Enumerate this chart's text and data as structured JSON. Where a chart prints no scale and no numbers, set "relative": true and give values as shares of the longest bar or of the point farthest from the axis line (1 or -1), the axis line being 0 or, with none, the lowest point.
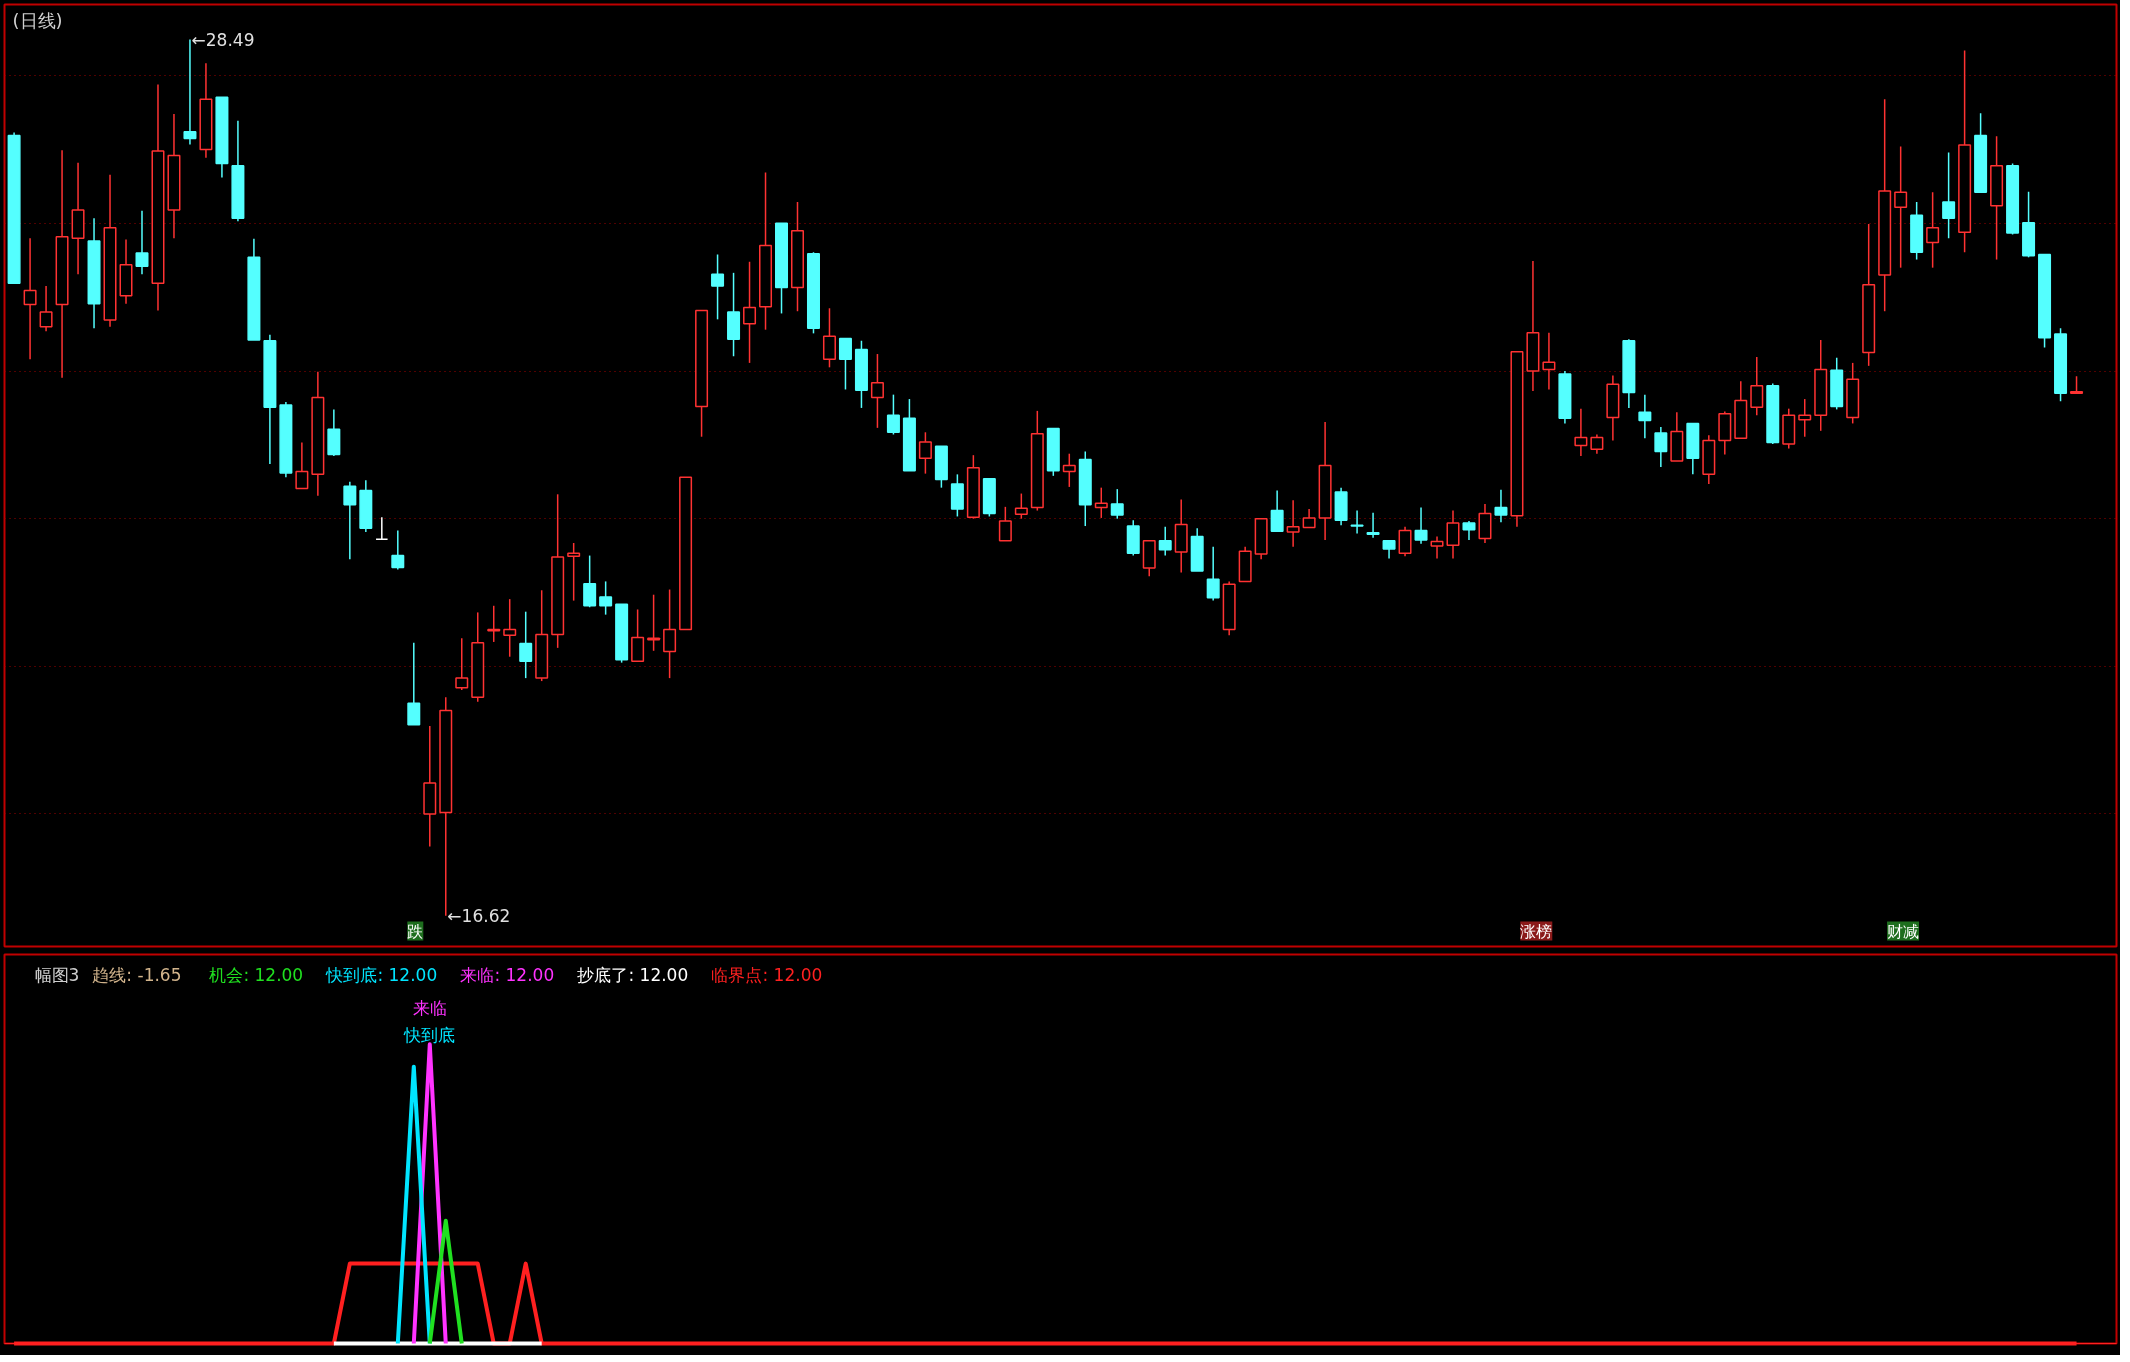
{
  "chart_data": [
    {
      "type": "candlestick",
      "title": "(日线)",
      "categories": [
        null,
        null,
        null,
        null,
        null,
        null,
        null,
        null,
        null,
        null,
        null,
        null,
        null,
        null,
        null,
        null,
        null,
        null,
        null,
        null,
        null,
        null,
        null,
        null,
        null,
        null,
        null,
        null,
        null,
        null,
        null,
        null,
        null,
        null,
        null,
        null,
        null,
        null,
        null,
        null,
        null,
        null,
        null,
        null,
        null,
        null,
        null,
        null,
        null,
        null,
        null,
        null,
        null,
        null,
        null,
        null,
        null,
        null,
        null,
        null,
        null,
        null,
        null,
        null,
        null,
        null,
        null,
        null,
        null,
        null,
        null,
        null,
        null,
        null,
        null,
        null,
        null,
        null,
        null,
        null,
        null,
        null,
        null,
        null,
        null,
        null,
        null,
        null,
        null,
        null,
        null,
        null,
        null,
        null,
        null,
        null,
        null,
        null,
        null,
        null,
        null,
        null,
        null,
        null,
        null,
        null,
        null,
        null,
        null,
        null,
        null,
        null,
        null,
        null,
        null,
        null,
        null,
        null,
        null,
        null,
        null,
        null,
        null,
        null,
        null,
        null,
        null,
        null,
        null,
        null
      ],
      "ohlc": [
        [
          27.19,
          27.23,
          25.19,
          25.19
        ],
        [
          24.9,
          25.8,
          24.16,
          25.09
        ],
        [
          24.6,
          25.15,
          24.54,
          24.8
        ],
        [
          24.9,
          26.99,
          23.91,
          25.82
        ],
        [
          25.8,
          26.82,
          25.31,
          26.18
        ],
        [
          25.76,
          26.07,
          24.58,
          24.91
        ],
        [
          24.69,
          26.66,
          24.6,
          25.94
        ],
        [
          25.02,
          25.78,
          24.91,
          25.44
        ],
        [
          25.6,
          26.17,
          25.31,
          25.42
        ],
        [
          25.19,
          27.88,
          24.82,
          26.98
        ],
        [
          26.18,
          27.48,
          25.8,
          26.92
        ],
        [
          27.24,
          28.49,
          27.07,
          27.15
        ],
        [
          27.0,
          28.17,
          26.89,
          27.68
        ],
        [
          27.71,
          27.71,
          26.62,
          26.81
        ],
        [
          26.78,
          27.39,
          26.03,
          26.07
        ],
        [
          25.54,
          25.79,
          24.42,
          24.42
        ],
        [
          24.41,
          24.49,
          22.74,
          23.51
        ],
        [
          23.54,
          23.58,
          22.56,
          22.62
        ],
        [
          22.41,
          23.03,
          22.41,
          22.64
        ],
        [
          22.6,
          23.99,
          22.31,
          23.64
        ],
        [
          23.21,
          23.48,
          22.85,
          22.87
        ],
        [
          22.44,
          22.5,
          21.45,
          22.19
        ],
        [
          22.38,
          22.52,
          21.82,
          21.87
        ],
        [
          21.72,
          22.02,
          21.71,
          21.72
        ],
        [
          21.5,
          21.84,
          21.31,
          21.34
        ],
        [
          19.5,
          20.32,
          19.21,
          19.21
        ],
        [
          18.0,
          19.19,
          17.56,
          18.42
        ],
        [
          18.02,
          19.58,
          16.62,
          19.4
        ],
        [
          19.71,
          20.38,
          19.68,
          19.84
        ],
        [
          19.58,
          20.73,
          19.52,
          20.32
        ],
        [
          20.48,
          20.82,
          20.33,
          20.5
        ],
        [
          20.42,
          20.91,
          20.13,
          20.5
        ],
        [
          20.31,
          20.74,
          19.84,
          20.07
        ],
        [
          19.84,
          21.03,
          19.8,
          20.43
        ],
        [
          20.43,
          22.33,
          20.25,
          21.48
        ],
        [
          21.49,
          21.67,
          20.89,
          21.53
        ],
        [
          21.12,
          21.5,
          20.8,
          20.82
        ],
        [
          20.94,
          21.15,
          20.7,
          20.82
        ],
        [
          20.84,
          20.84,
          20.05,
          20.09
        ],
        [
          20.07,
          20.77,
          20.07,
          20.39
        ],
        [
          20.36,
          20.97,
          20.21,
          20.38
        ],
        [
          20.2,
          21.04,
          19.84,
          20.5
        ],
        [
          20.5,
          22.56,
          20.5,
          22.56
        ],
        [
          23.52,
          24.82,
          23.11,
          24.82
        ],
        [
          25.31,
          25.58,
          24.7,
          25.15
        ],
        [
          24.8,
          25.33,
          24.2,
          24.43
        ],
        [
          24.64,
          25.48,
          24.11,
          24.86
        ],
        [
          24.87,
          26.69,
          24.56,
          25.7
        ],
        [
          26.0,
          26.0,
          24.78,
          25.13
        ],
        [
          25.13,
          26.29,
          24.81,
          25.9
        ],
        [
          25.59,
          25.61,
          24.51,
          24.58
        ],
        [
          24.16,
          24.85,
          24.05,
          24.47
        ],
        [
          24.44,
          24.44,
          23.75,
          24.16
        ],
        [
          24.29,
          24.41,
          23.5,
          23.74
        ],
        [
          23.64,
          24.23,
          23.23,
          23.84
        ],
        [
          23.4,
          23.68,
          23.14,
          23.17
        ],
        [
          23.36,
          23.62,
          22.65,
          22.65
        ],
        [
          22.82,
          23.17,
          22.61,
          23.04
        ],
        [
          22.98,
          22.98,
          22.42,
          22.53
        ],
        [
          22.47,
          22.6,
          22.03,
          22.13
        ],
        [
          22.02,
          22.86,
          22.0,
          22.69
        ],
        [
          22.54,
          22.54,
          22.03,
          22.07
        ],
        [
          21.7,
          22.16,
          21.7,
          21.97
        ],
        [
          22.06,
          22.34,
          22.0,
          22.14
        ],
        [
          22.15,
          23.46,
          22.11,
          23.15
        ],
        [
          23.22,
          23.22,
          22.58,
          22.65
        ],
        [
          22.64,
          22.88,
          22.43,
          22.72
        ],
        [
          22.8,
          22.91,
          21.9,
          22.19
        ],
        [
          22.15,
          22.42,
          22.01,
          22.21
        ],
        [
          22.2,
          22.4,
          22.0,
          22.05
        ],
        [
          21.9,
          21.98,
          21.5,
          21.53
        ],
        [
          21.33,
          21.7,
          21.22,
          21.7
        ],
        [
          21.7,
          21.89,
          21.5,
          21.58
        ],
        [
          21.55,
          22.26,
          21.27,
          21.92
        ],
        [
          21.76,
          21.87,
          21.29,
          21.29
        ],
        [
          21.18,
          21.62,
          20.89,
          20.93
        ],
        [
          20.5,
          21.15,
          20.42,
          21.11
        ],
        [
          21.15,
          21.62,
          21.15,
          21.56
        ],
        [
          21.52,
          22.0,
          21.45,
          22.0
        ],
        [
          22.11,
          22.38,
          21.83,
          21.83
        ],
        [
          21.82,
          22.25,
          21.62,
          21.89
        ],
        [
          21.88,
          22.13,
          21.88,
          22.01
        ],
        [
          22.01,
          23.31,
          21.71,
          22.72
        ],
        [
          22.36,
          22.42,
          21.91,
          21.98
        ],
        [
          21.91,
          22.11,
          21.8,
          21.9
        ],
        [
          21.81,
          22.08,
          21.74,
          21.79
        ],
        [
          21.7,
          21.7,
          21.46,
          21.59
        ],
        [
          21.53,
          21.89,
          21.49,
          21.84
        ],
        [
          21.84,
          22.15,
          21.66,
          21.71
        ],
        [
          21.63,
          21.76,
          21.46,
          21.69
        ],
        [
          21.64,
          22.11,
          21.46,
          21.94
        ],
        [
          21.94,
          21.97,
          21.71,
          21.85
        ],
        [
          21.73,
          22.2,
          21.67,
          22.07
        ],
        [
          22.15,
          22.39,
          21.95,
          22.05
        ],
        [
          22.04,
          24.26,
          21.89,
          24.26
        ],
        [
          24.0,
          25.49,
          23.73,
          24.52
        ],
        [
          24.02,
          24.52,
          23.75,
          24.12
        ],
        [
          23.96,
          24.0,
          23.29,
          23.36
        ],
        [
          22.99,
          23.49,
          22.85,
          23.1
        ],
        [
          22.94,
          23.14,
          22.88,
          23.1
        ],
        [
          23.37,
          23.94,
          23.06,
          23.82
        ],
        [
          24.41,
          24.43,
          23.5,
          23.71
        ],
        [
          23.44,
          23.68,
          23.09,
          23.33
        ],
        [
          23.16,
          23.24,
          22.7,
          22.91
        ],
        [
          22.78,
          23.44,
          22.78,
          23.18
        ],
        [
          23.29,
          23.29,
          22.6,
          22.82
        ],
        [
          22.6,
          23.13,
          22.47,
          23.06
        ],
        [
          23.06,
          23.45,
          22.87,
          23.42
        ],
        [
          23.09,
          23.86,
          23.09,
          23.6
        ],
        [
          23.51,
          24.19,
          23.4,
          23.8
        ],
        [
          23.8,
          23.83,
          23.01,
          23.03
        ],
        [
          23.01,
          23.49,
          22.95,
          23.4
        ],
        [
          23.34,
          23.62,
          23.11,
          23.4
        ],
        [
          23.4,
          24.42,
          23.19,
          24.02
        ],
        [
          24.01,
          24.18,
          23.48,
          23.52
        ],
        [
          23.37,
          24.11,
          23.29,
          23.89
        ],
        [
          24.25,
          25.99,
          24.07,
          25.17
        ],
        [
          25.3,
          27.68,
          24.81,
          26.44
        ],
        [
          26.22,
          27.04,
          25.4,
          26.42
        ],
        [
          26.11,
          26.29,
          25.51,
          25.61
        ],
        [
          25.74,
          26.42,
          25.4,
          25.94
        ],
        [
          26.29,
          26.96,
          25.8,
          26.07
        ],
        [
          25.88,
          28.34,
          25.61,
          27.06
        ],
        [
          27.19,
          27.49,
          26.42,
          26.42
        ],
        [
          26.24,
          27.18,
          25.51,
          26.78
        ],
        [
          26.78,
          26.81,
          25.85,
          25.87
        ],
        [
          26.01,
          26.43,
          25.54,
          25.56
        ],
        [
          25.58,
          25.58,
          24.32,
          24.45
        ],
        [
          24.5,
          24.58,
          23.59,
          23.7
        ],
        [
          23.7,
          23.93,
          23.7,
          23.72
        ]
      ],
      "colors": [
        "#54ffff",
        "#ff3232",
        "#ff3232",
        "#ff3232",
        "#ff3232",
        "#54ffff",
        "#ff3232",
        "#ff3232",
        "#54ffff",
        "#ff3232",
        "#ff3232",
        "#54ffff",
        "#ff3232",
        "#54ffff",
        "#54ffff",
        "#54ffff",
        "#54ffff",
        "#54ffff",
        "#ff3232",
        "#ff3232",
        "#54ffff",
        "#54ffff",
        "#54ffff",
        "#ffffff",
        "#54ffff",
        "#54ffff",
        "#ff3232",
        "#ff3232",
        "#ff3232",
        "#ff3232",
        "#ff3232",
        "#ff3232",
        "#54ffff",
        "#ff3232",
        "#ff3232",
        "#ff3232",
        "#54ffff",
        "#54ffff",
        "#54ffff",
        "#ff3232",
        "#ff3232",
        "#ff3232",
        "#ff3232",
        "#ff3232",
        "#54ffff",
        "#54ffff",
        "#ff3232",
        "#ff3232",
        "#54ffff",
        "#ff3232",
        "#54ffff",
        "#ff3232",
        "#54ffff",
        "#54ffff",
        "#ff3232",
        "#54ffff",
        "#54ffff",
        "#ff3232",
        "#54ffff",
        "#54ffff",
        "#ff3232",
        "#54ffff",
        "#ff3232",
        "#ff3232",
        "#ff3232",
        "#54ffff",
        "#ff3232",
        "#54ffff",
        "#ff3232",
        "#54ffff",
        "#54ffff",
        "#ff3232",
        "#54ffff",
        "#ff3232",
        "#54ffff",
        "#54ffff",
        "#ff3232",
        "#ff3232",
        "#ff3232",
        "#54ffff",
        "#ff3232",
        "#ff3232",
        "#ff3232",
        "#54ffff",
        "#54ffff",
        "#54ffff",
        "#54ffff",
        "#ff3232",
        "#54ffff",
        "#ff3232",
        "#ff3232",
        "#54ffff",
        "#ff3232",
        "#54ffff",
        "#ff3232",
        "#ff3232",
        "#ff3232",
        "#54ffff",
        "#ff3232",
        "#ff3232",
        "#ff3232",
        "#54ffff",
        "#54ffff",
        "#54ffff",
        "#ff3232",
        "#54ffff",
        "#ff3232",
        "#ff3232",
        "#ff3232",
        "#ff3232",
        "#54ffff",
        "#ff3232",
        "#ff3232",
        "#ff3232",
        "#54ffff",
        "#ff3232",
        "#ff3232",
        "#ff3232",
        "#ff3232",
        "#54ffff",
        "#ff3232",
        "#54ffff",
        "#ff3232",
        "#54ffff",
        "#ff3232",
        "#54ffff",
        "#54ffff",
        "#54ffff",
        "#54ffff",
        "#ff3232"
      ],
      "yticks": [
        {
          "value": 18,
          "label": null
        },
        {
          "value": 20,
          "label": null
        },
        {
          "value": 22,
          "label": null
        },
        {
          "value": 24,
          "label": null
        },
        {
          "value": 26,
          "label": null
        },
        {
          "value": 28,
          "label": null
        }
      ],
      "grid": "y",
      "tick_labels": false,
      "annotations": [
        "←28.49",
        "←16.62",
        "跌",
        "涨榜",
        "财减"
      ]
    },
    {
      "type": "line",
      "title": "幅图3",
      "relative": true,
      "tick_labels": "x",
      "legend": "top left",
      "categories": [
        null,
        null,
        null,
        null,
        null,
        null,
        null,
        null,
        null,
        null,
        null,
        null,
        null,
        null,
        null,
        null,
        null,
        null,
        null,
        null,
        null,
        null,
        null,
        null,
        null,
        null,
        null,
        null,
        null,
        null,
        null,
        null,
        null,
        null,
        null,
        null,
        null,
        null,
        null,
        null,
        null,
        null,
        null,
        null,
        null,
        null,
        null,
        null,
        null,
        null,
        null,
        null,
        null,
        null,
        null,
        null,
        null,
        null,
        null,
        null,
        null,
        null,
        null,
        null,
        null,
        null,
        null,
        null,
        null,
        null,
        null,
        null,
        null,
        null,
        null,
        null,
        null,
        null,
        null,
        null,
        null,
        null,
        null,
        null,
        null,
        null,
        null,
        null,
        null,
        null,
        null,
        null,
        null,
        null,
        null,
        null,
        null,
        null,
        null,
        null,
        null,
        null,
        null,
        null,
        null,
        null,
        null,
        null,
        null,
        null,
        null,
        null,
        null,
        null,
        null,
        null,
        null,
        null,
        null,
        null,
        null,
        null,
        null,
        null,
        null,
        null,
        null,
        null,
        null,
        null
      ],
      "series": [
        {
          "name": "机会: 12.00",
          "color": "#20e020",
          "values": [
            null,
            null,
            null,
            null,
            null,
            null,
            null,
            null,
            null,
            null,
            null,
            null,
            null,
            null,
            null,
            null,
            null,
            null,
            null,
            null,
            null,
            null,
            null,
            null,
            null,
            null,
            0,
            0.41,
            0,
            null,
            null,
            null,
            null,
            null,
            null,
            null,
            null,
            null,
            null,
            null,
            null,
            null,
            null,
            null,
            null,
            null,
            null,
            null,
            null,
            null,
            null,
            null,
            null,
            null,
            null,
            null,
            null,
            null,
            null,
            null,
            null,
            null,
            null,
            null,
            null,
            null,
            null,
            null,
            null,
            null,
            null,
            null,
            null,
            null,
            null,
            null,
            null,
            null,
            null,
            null,
            null,
            null,
            null,
            null,
            null,
            null,
            null,
            null,
            null,
            null,
            null,
            null,
            null,
            null,
            null,
            null,
            null,
            null,
            null,
            null,
            null,
            null,
            null,
            null,
            null,
            null,
            null,
            null,
            null,
            null,
            null,
            null,
            null,
            null,
            null,
            null,
            null,
            null,
            null,
            null,
            null,
            null,
            null,
            null,
            null,
            null,
            null,
            null,
            null,
            null
          ]
        },
        {
          "name": "快到底: 12.00",
          "color": "#00e5ff",
          "values": [
            null,
            null,
            null,
            null,
            null,
            null,
            null,
            null,
            null,
            null,
            null,
            null,
            null,
            null,
            null,
            null,
            null,
            null,
            null,
            null,
            null,
            null,
            null,
            null,
            0,
            0.925,
            0,
            null,
            null,
            null,
            null,
            null,
            null,
            null,
            null,
            null,
            null,
            null,
            null,
            null,
            null,
            null,
            null,
            null,
            null,
            null,
            null,
            null,
            null,
            null,
            null,
            null,
            null,
            null,
            null,
            null,
            null,
            null,
            null,
            null,
            null,
            null,
            null,
            null,
            null,
            null,
            null,
            null,
            null,
            null,
            null,
            null,
            null,
            null,
            null,
            null,
            null,
            null,
            null,
            null,
            null,
            null,
            null,
            null,
            null,
            null,
            null,
            null,
            null,
            null,
            null,
            null,
            null,
            null,
            null,
            null,
            null,
            null,
            null,
            null,
            null,
            null,
            null,
            null,
            null,
            null,
            null,
            null,
            null,
            null,
            null,
            null,
            null,
            null,
            null,
            null,
            null,
            null,
            null,
            null,
            null,
            null,
            null,
            null,
            null,
            null,
            null,
            null,
            null,
            null
          ]
        },
        {
          "name": "来临: 12.00",
          "color": "#ff33ff",
          "values": [
            null,
            null,
            null,
            null,
            null,
            null,
            null,
            null,
            null,
            null,
            null,
            null,
            null,
            null,
            null,
            null,
            null,
            null,
            null,
            null,
            null,
            null,
            null,
            null,
            null,
            0,
            1,
            0,
            null,
            null,
            null,
            null,
            null,
            null,
            null,
            null,
            null,
            null,
            null,
            null,
            null,
            null,
            null,
            null,
            null,
            null,
            null,
            null,
            null,
            null,
            null,
            null,
            null,
            null,
            null,
            null,
            null,
            null,
            null,
            null,
            null,
            null,
            null,
            null,
            null,
            null,
            null,
            null,
            null,
            null,
            null,
            null,
            null,
            null,
            null,
            null,
            null,
            null,
            null,
            null,
            null,
            null,
            null,
            null,
            null,
            null,
            null,
            null,
            null,
            null,
            null,
            null,
            null,
            null,
            null,
            null,
            null,
            null,
            null,
            null,
            null,
            null,
            null,
            null,
            null,
            null,
            null,
            null,
            null,
            null,
            null,
            null,
            null,
            null,
            null,
            null,
            null,
            null,
            null,
            null,
            null,
            null,
            null,
            null,
            null,
            null,
            null,
            null,
            null,
            null
          ]
        },
        {
          "name": "抄底了: 12.00",
          "color": "#ffffff",
          "values": [
            null,
            null,
            null,
            null,
            null,
            null,
            null,
            null,
            null,
            null,
            null,
            null,
            null,
            null,
            null,
            null,
            null,
            null,
            null,
            null,
            0,
            0,
            0,
            0,
            0,
            0,
            0,
            0,
            0,
            0,
            0,
            0,
            0,
            0,
            null,
            null,
            null,
            null,
            null,
            null,
            null,
            null,
            null,
            null,
            null,
            null,
            null,
            null,
            null,
            null,
            null,
            null,
            null,
            null,
            null,
            null,
            null,
            null,
            null,
            null,
            null,
            null,
            null,
            null,
            null,
            null,
            null,
            null,
            null,
            null,
            null,
            null,
            null,
            null,
            null,
            null,
            null,
            null,
            null,
            null,
            null,
            null,
            null,
            null,
            null,
            null,
            null,
            null,
            null,
            null,
            null,
            null,
            null,
            null,
            null,
            null,
            null,
            null,
            null,
            null,
            null,
            null,
            null,
            null,
            null,
            null,
            null,
            null,
            null,
            null,
            null,
            null,
            null,
            null,
            null,
            null,
            null,
            null,
            null,
            null,
            null,
            null,
            null,
            null,
            null,
            null,
            null,
            null,
            null,
            null
          ]
        },
        {
          "name": "临界点: 12.00",
          "color": "#ff2020",
          "values": [
            0,
            0,
            0,
            0,
            0,
            0,
            0,
            0,
            0,
            0,
            0,
            0,
            0,
            0,
            0,
            0,
            0,
            0,
            0,
            0,
            0,
            0.267,
            0.267,
            0.267,
            0.267,
            0.267,
            0.267,
            0.267,
            0.267,
            0.267,
            0,
            0,
            0.267,
            0,
            0,
            0,
            0,
            0,
            0,
            0,
            0,
            0,
            0,
            0,
            0,
            0,
            0,
            0,
            0,
            0,
            0,
            0,
            0,
            0,
            0,
            0,
            0,
            0,
            0,
            0,
            0,
            0,
            0,
            0,
            0,
            0,
            0,
            0,
            0,
            0,
            0,
            0,
            0,
            0,
            0,
            0,
            0,
            0,
            0,
            0,
            0,
            0,
            0,
            0,
            0,
            0,
            0,
            0,
            0,
            0,
            0,
            0,
            0,
            0,
            0,
            0,
            0,
            0,
            0,
            0,
            0,
            0,
            0,
            0,
            0,
            0,
            0,
            0,
            0,
            0,
            0,
            0,
            0,
            0,
            0,
            0,
            0,
            0,
            0,
            0,
            0,
            0,
            0,
            0,
            0,
            0,
            0,
            0,
            0,
            0
          ]
        }
      ],
      "annotations": [
        "趋线: -1.65",
        "来临",
        "快到底"
      ]
    }
  ]
}
